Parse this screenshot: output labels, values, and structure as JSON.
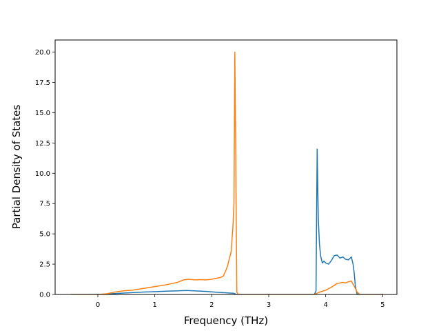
{
  "chart_data": {
    "type": "line",
    "title": "",
    "xlabel": "Frequency (THz)",
    "ylabel": "Partial Density of States",
    "xlim": [
      -0.75,
      5.25
    ],
    "ylim": [
      0,
      21
    ],
    "xticks": [
      0,
      1,
      2,
      3,
      4,
      5
    ],
    "xtick_labels": [
      "0",
      "1",
      "2",
      "3",
      "4",
      "5"
    ],
    "yticks": [
      0,
      2.5,
      5,
      7.5,
      10,
      12.5,
      15,
      17.5,
      20
    ],
    "ytick_labels": [
      "0.0",
      "2.5",
      "5.0",
      "7.5",
      "10.0",
      "12.5",
      "15.0",
      "17.5",
      "20.0"
    ],
    "grid": false,
    "legend": "none",
    "series": [
      {
        "color": "#1f77b4",
        "x": [
          -0.47,
          0.0,
          0.2,
          0.4,
          0.6,
          0.8,
          1.0,
          1.2,
          1.4,
          1.55,
          1.7,
          1.9,
          2.1,
          2.2,
          2.3,
          2.38,
          2.41,
          2.42,
          2.43,
          2.44,
          2.5,
          3.0,
          3.5,
          3.8,
          3.83,
          3.85,
          3.87,
          3.89,
          3.91,
          3.94,
          3.97,
          4.0,
          4.05,
          4.1,
          4.15,
          4.2,
          4.25,
          4.3,
          4.35,
          4.4,
          4.45,
          4.48,
          4.5,
          4.52,
          4.55,
          4.6,
          5.0
        ],
        "values": [
          0.0,
          0.0,
          0.05,
          0.1,
          0.15,
          0.2,
          0.23,
          0.27,
          0.3,
          0.33,
          0.3,
          0.25,
          0.18,
          0.15,
          0.12,
          0.1,
          0.05,
          0.02,
          0.0,
          0.0,
          0.0,
          0.0,
          0.0,
          0.0,
          0.3,
          12.0,
          6.3,
          4.2,
          3.2,
          2.6,
          2.75,
          2.6,
          2.5,
          2.8,
          3.2,
          3.25,
          3.0,
          3.1,
          2.9,
          2.85,
          3.1,
          2.5,
          1.8,
          0.7,
          0.05,
          0.0,
          0.0
        ]
      },
      {
        "color": "#ff7f0e",
        "x": [
          -0.47,
          0.0,
          0.15,
          0.3,
          0.45,
          0.6,
          0.8,
          1.0,
          1.2,
          1.4,
          1.5,
          1.6,
          1.7,
          1.8,
          1.9,
          2.0,
          2.1,
          2.15,
          2.2,
          2.25,
          2.28,
          2.31,
          2.34,
          2.37,
          2.39,
          2.405,
          2.42,
          2.44,
          2.46,
          3.0,
          3.5,
          3.8,
          3.85,
          3.9,
          4.0,
          4.1,
          4.2,
          4.3,
          4.35,
          4.4,
          4.45,
          4.5,
          4.55,
          4.6,
          5.0
        ],
        "values": [
          0.0,
          0.0,
          0.05,
          0.2,
          0.3,
          0.35,
          0.5,
          0.65,
          0.8,
          1.0,
          1.2,
          1.25,
          1.2,
          1.22,
          1.2,
          1.25,
          1.35,
          1.4,
          1.5,
          2.0,
          2.4,
          3.0,
          3.5,
          5.5,
          7.5,
          20.0,
          12.0,
          0.2,
          0.0,
          0.0,
          0.0,
          0.0,
          0.1,
          0.2,
          0.35,
          0.6,
          0.9,
          1.0,
          0.95,
          1.05,
          1.1,
          0.7,
          0.2,
          0.0,
          0.0
        ]
      }
    ]
  }
}
